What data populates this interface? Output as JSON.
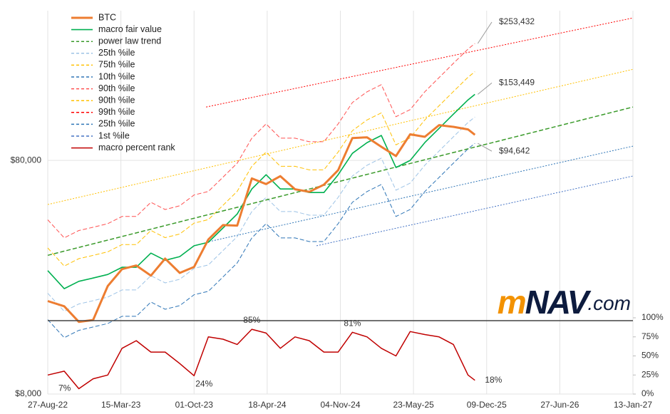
{
  "chart_data": {
    "type": "line",
    "yscale": "log",
    "grid": true,
    "legend": "upper left",
    "x": [
      "2022-08-27",
      "2022-10-11",
      "2022-11-20",
      "2022-12-29",
      "2023-02-07",
      "2023-03-18",
      "2023-04-26",
      "2023-06-05",
      "2023-07-14",
      "2023-08-23",
      "2023-10-01",
      "2023-11-09",
      "2023-12-19",
      "2024-01-27",
      "2024-03-07",
      "2024-04-15",
      "2024-05-24",
      "2024-07-03",
      "2024-08-11",
      "2024-09-20",
      "2024-10-29",
      "2024-12-07",
      "2025-01-16",
      "2025-02-24",
      "2025-04-05",
      "2025-05-14",
      "2025-06-23",
      "2025-08-01",
      "2025-09-09",
      "2025-10-19",
      "2025-11-07"
    ],
    "xlim": [
      "2022-08-27",
      "2027-01-13"
    ],
    "xticks": [
      {
        "value": "2022-08-27",
        "label": "27-Aug-22"
      },
      {
        "value": "2023-03-15",
        "label": "15-Mar-23"
      },
      {
        "value": "2023-10-01",
        "label": "01-Oct-23"
      },
      {
        "value": "2024-04-18",
        "label": "18-Apr-24"
      },
      {
        "value": "2024-11-04",
        "label": "04-Nov-24"
      },
      {
        "value": "2025-05-23",
        "label": "23-May-25"
      },
      {
        "value": "2025-12-09",
        "label": "09-Dec-25"
      },
      {
        "value": "2026-06-27",
        "label": "27-Jun-26"
      },
      {
        "value": "2027-01-13",
        "label": "13-Jan-27"
      }
    ],
    "ylim": [
      8000,
      350000
    ],
    "yticks": [
      {
        "value": 8000,
        "label": "$8,000"
      },
      {
        "value": 80000,
        "label": "$80,000"
      }
    ],
    "y2lim": [
      0,
      100
    ],
    "y2ticks": [
      {
        "value": 0,
        "label": "0%"
      },
      {
        "value": 25,
        "label": "25%"
      },
      {
        "value": 50,
        "label": "50%"
      },
      {
        "value": 75,
        "label": "75%"
      },
      {
        "value": 100,
        "label": "100%"
      }
    ],
    "series": [
      {
        "name": "BTC",
        "color": "#ED7D31",
        "dash": "solid",
        "width": 3,
        "values": [
          20000,
          19000,
          16300,
          16600,
          23200,
          27400,
          28400,
          25700,
          30400,
          26400,
          28000,
          36700,
          42300,
          42100,
          67000,
          63400,
          68500,
          60200,
          58700,
          63000,
          72700,
          99800,
          100500,
          91500,
          83500,
          103500,
          101000,
          113300,
          111400,
          108600,
          103000
        ]
      },
      {
        "name": "macro fair value",
        "color": "#00B050",
        "dash": "solid",
        "width": 1.6,
        "values": [
          27000,
          22600,
          24300,
          25100,
          26000,
          27900,
          27900,
          32100,
          29900,
          31000,
          34500,
          35700,
          41100,
          47200,
          60400,
          69500,
          60400,
          60400,
          58300,
          58300,
          69500,
          85800,
          95400,
          102300,
          74600,
          80000,
          95400,
          109700,
          126200,
          145300,
          153449
        ]
      },
      {
        "name": "power law trend",
        "color": "#3A9A2A",
        "dash": "dashed",
        "width": 1.5,
        "x": [
          "2022-08-27",
          "2027-01-13"
        ],
        "values": [
          31400,
          135400
        ]
      },
      {
        "name": "25th %ile",
        "color": "#9DC3E6",
        "dash": "dashed",
        "width": 1,
        "values": [
          21600,
          18080,
          19440,
          20080,
          20800,
          22320,
          22320,
          25680,
          23920,
          24800,
          27600,
          28560,
          32880,
          37760,
          48320,
          55600,
          48320,
          48320,
          46640,
          46640,
          55600,
          68640,
          76320,
          81840,
          59680,
          64000,
          76320,
          87760,
          100960,
          116240,
          122760
        ]
      },
      {
        "name": "75th %ile",
        "color": "#FFC000",
        "dash": "dashed",
        "width": 1,
        "values": [
          33750,
          28250,
          30380,
          31380,
          32500,
          34880,
          34880,
          40130,
          37380,
          38750,
          43130,
          44630,
          51380,
          59000,
          75500,
          86880,
          75500,
          75500,
          72880,
          72880,
          86880,
          107250,
          119250,
          127880,
          93250,
          100000,
          119250,
          137130,
          157750,
          181630,
          191810
        ]
      },
      {
        "name": "10th %ile",
        "color": "#2E75B6",
        "dash": "dashed",
        "width": 1,
        "values": [
          16660,
          13940,
          14990,
          15490,
          16040,
          17210,
          17210,
          19810,
          18450,
          19130,
          21290,
          22030,
          25360,
          29120,
          37270,
          42880,
          37270,
          37270,
          35970,
          35970,
          42880,
          52940,
          58860,
          63120,
          46030,
          49360,
          58860,
          67680,
          77870,
          89650,
          94642
        ]
      },
      {
        "name": "90th %ile",
        "color": "#FF5050",
        "dash": "dashed",
        "width": 1,
        "values": [
          44550,
          37290,
          40100,
          41420,
          42900,
          46040,
          46040,
          52970,
          49340,
          51150,
          56930,
          58910,
          67820,
          77880,
          99660,
          114680,
          99660,
          99660,
          96200,
          96200,
          114680,
          141570,
          157410,
          168800,
          123090,
          132000,
          157410,
          181010,
          208230,
          239750,
          253432
        ]
      },
      {
        "name": "90th %ile",
        "color": "#FFC000",
        "dash": "dotted",
        "width": 1,
        "x": [
          "2022-08-27",
          "2027-01-13"
        ],
        "values": [
          51800,
          196400
        ]
      },
      {
        "name": "99th %ile",
        "color": "#FF0000",
        "dash": "dotted",
        "width": 1,
        "x": [
          "2023-11-03",
          "2027-01-13"
        ],
        "values": [
          135400,
          325800
        ]
      },
      {
        "name": "25th %ile",
        "color": "#2E75B6",
        "dash": "dotted",
        "width": 1,
        "x": [
          "2023-11-03",
          "2027-01-13"
        ],
        "values": [
          35700,
          92100
        ]
      },
      {
        "name": "1st %ile",
        "color": "#4472C4",
        "dash": "dotted",
        "width": 1,
        "x": [
          "2024-08-31",
          "2027-01-13"
        ],
        "values": [
          34500,
          68600
        ]
      },
      {
        "name": "macro percent rank",
        "color": "#C00000",
        "dash": "solid",
        "width": 1.5,
        "axis": "y2",
        "values": [
          25,
          30,
          7,
          20,
          25,
          60,
          70,
          55,
          55,
          40,
          24,
          75,
          72,
          65,
          85,
          80,
          60,
          75,
          70,
          55,
          55,
          81,
          75,
          60,
          50,
          82,
          78,
          75,
          65,
          25,
          18
        ]
      }
    ],
    "annotations": [
      {
        "value": 253432,
        "label": "$253,432"
      },
      {
        "value": 153449,
        "label": "$153,449"
      },
      {
        "value": 94642,
        "label": "$94,642"
      }
    ],
    "rank_labels": [
      {
        "x": "2024-03-07",
        "value": 85,
        "label": "85%"
      },
      {
        "x": "2024-12-07",
        "value": 81,
        "label": "81%"
      },
      {
        "x": "2023-10-01",
        "value": 24,
        "label": "24%"
      },
      {
        "x": "2022-11-20",
        "value": 7,
        "label": "7%"
      },
      {
        "x": "2025-11-07",
        "value": 18,
        "label": "18%"
      }
    ],
    "watermark": [
      "m",
      "NAV",
      ".com"
    ]
  }
}
